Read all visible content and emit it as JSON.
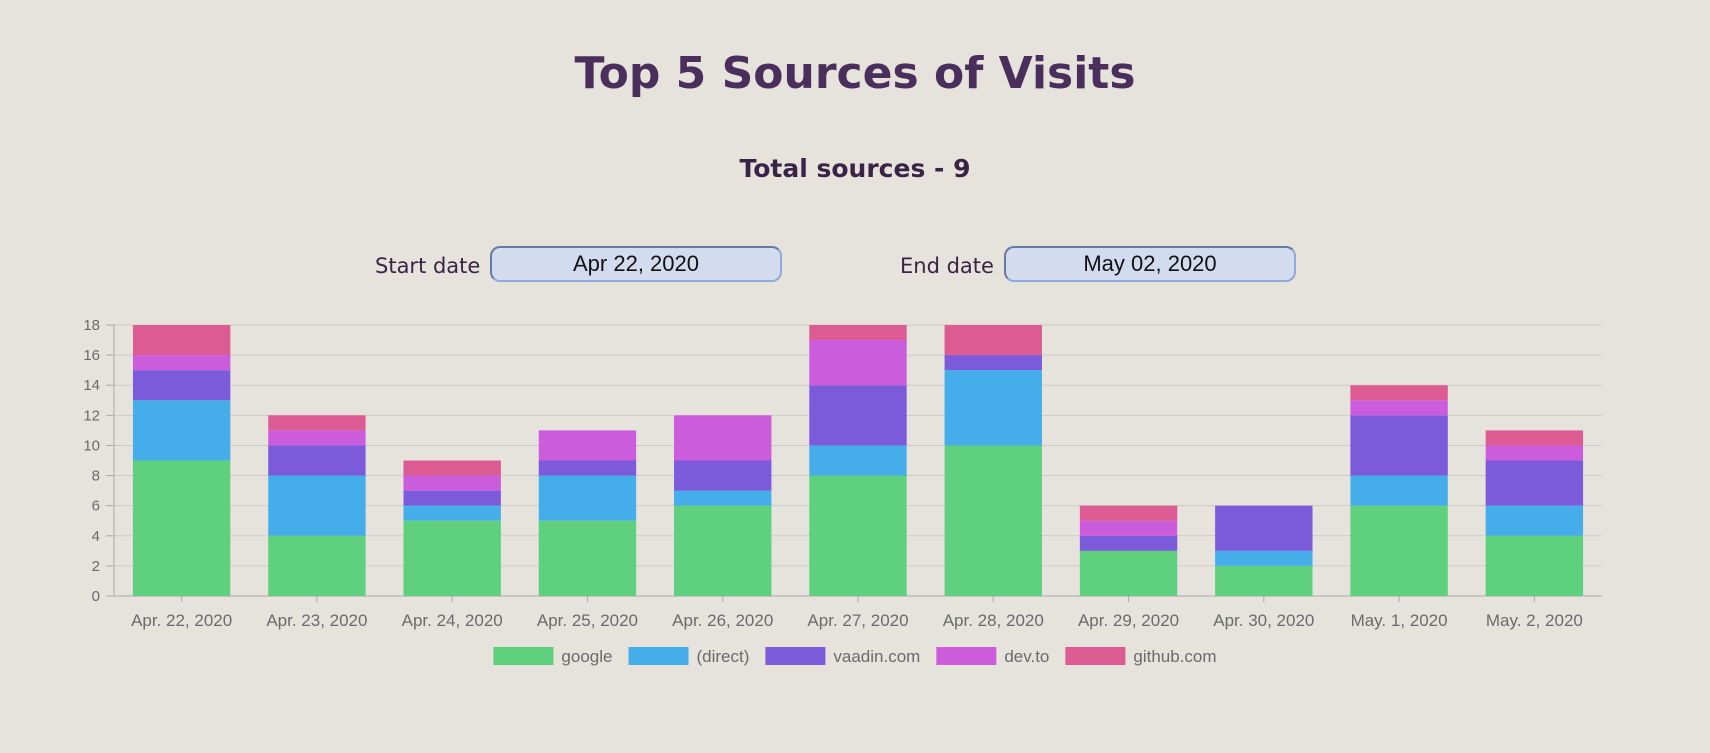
{
  "header": {
    "title": "Top 5 Sources of Visits",
    "subtitle": "Total sources - 9"
  },
  "filters": {
    "start_label": "Start date",
    "start_value": "Apr 22, 2020",
    "end_label": "End date",
    "end_value": "May 02, 2020"
  },
  "chart_data": {
    "type": "bar",
    "stacked": true,
    "categories": [
      "Apr. 22, 2020",
      "Apr. 23, 2020",
      "Apr. 24, 2020",
      "Apr. 25, 2020",
      "Apr. 26, 2020",
      "Apr. 27, 2020",
      "Apr. 28, 2020",
      "Apr. 29, 2020",
      "Apr. 30, 2020",
      "May. 1, 2020",
      "May. 2, 2020"
    ],
    "series": [
      {
        "name": "google",
        "color": "#5fd07e",
        "values": [
          9,
          4,
          5,
          5,
          6,
          8,
          10,
          3,
          2,
          6,
          4
        ]
      },
      {
        "name": "(direct)",
        "color": "#45aeea",
        "values": [
          4,
          4,
          1,
          3,
          1,
          2,
          5,
          0,
          1,
          2,
          2
        ]
      },
      {
        "name": "vaadin.com",
        "color": "#7c5bdb",
        "values": [
          2,
          2,
          1,
          1,
          2,
          4,
          1,
          1,
          3,
          4,
          3
        ]
      },
      {
        "name": "dev.to",
        "color": "#cb5ddc",
        "values": [
          1,
          1,
          1,
          2,
          3,
          3,
          0,
          1,
          0,
          1,
          1
        ]
      },
      {
        "name": "github.com",
        "color": "#dc5b93",
        "values": [
          2,
          1,
          1,
          0,
          0,
          1,
          2,
          1,
          0,
          1,
          1
        ]
      }
    ],
    "ylim": [
      0,
      18
    ],
    "yticks": [
      0,
      2,
      4,
      6,
      8,
      10,
      12,
      14,
      16,
      18
    ],
    "grid": true,
    "legend": "bottom-center",
    "xlabel": "",
    "ylabel": ""
  }
}
